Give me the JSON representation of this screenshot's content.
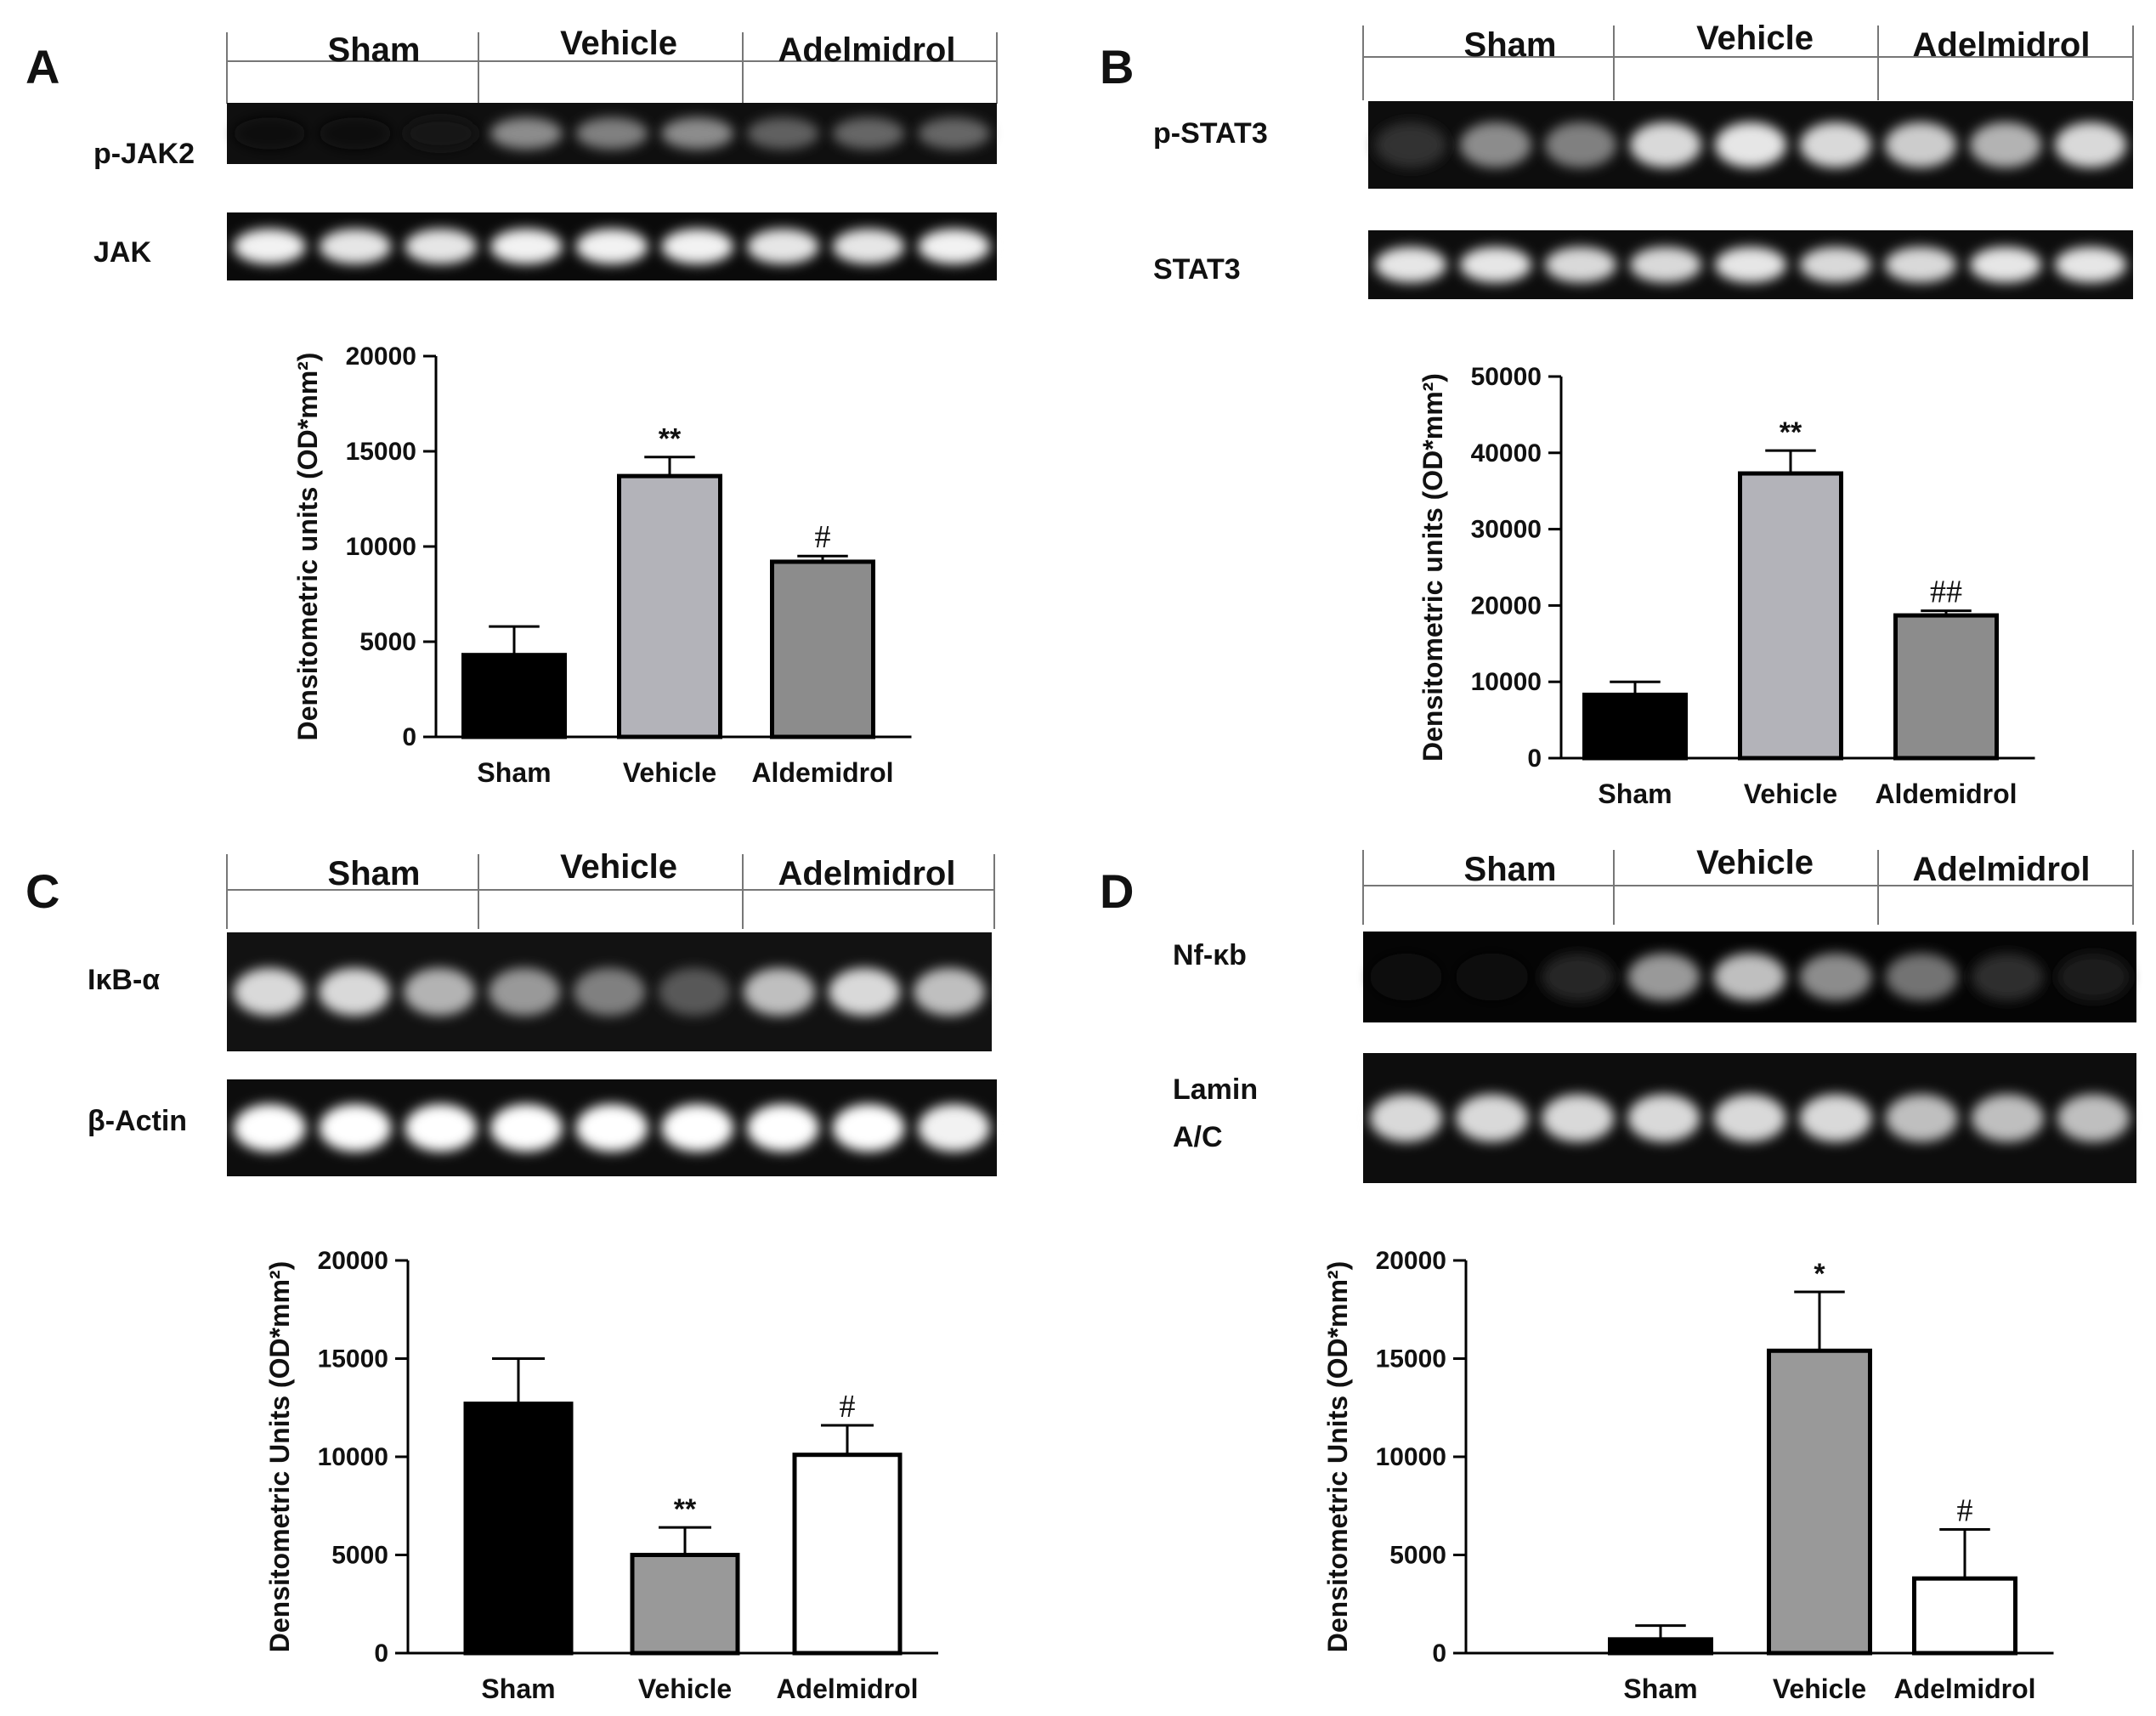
{
  "panels": [
    {
      "letter": "A",
      "groups": [
        "Sham",
        "Vehicle",
        "Adelmidrol"
      ],
      "blots": [
        {
          "label_lines": [
            "p-JAK2"
          ],
          "lanes": [
            0.06,
            0.06,
            0.07,
            0.55,
            0.5,
            0.55,
            0.38,
            0.4,
            0.4
          ],
          "bg": 0.06
        },
        {
          "label_lines": [
            "JAK"
          ],
          "lanes": [
            0.95,
            0.9,
            0.9,
            0.95,
            0.95,
            0.95,
            0.9,
            0.9,
            0.95
          ],
          "bg": 0.04
        }
      ],
      "chart_data": {
        "type": "bar",
        "categories": [
          "Sham",
          "Vehicle",
          "Aldemidrol"
        ],
        "values": [
          4300,
          13700,
          9200
        ],
        "errors": [
          1500,
          1000,
          300
        ],
        "significance": [
          "",
          "**",
          "#"
        ],
        "bar_colors": [
          "#000000",
          "#b3b3b9",
          "#8c8c8c"
        ],
        "ylabel": "Densitometric units (OD*mm²)",
        "ylim": [
          0,
          20000
        ],
        "yticks": [
          "0",
          "5000",
          "10000",
          "15000",
          "20000"
        ]
      }
    },
    {
      "letter": "B",
      "groups": [
        "Sham",
        "Vehicle",
        "Adelmidrol"
      ],
      "blots": [
        {
          "label_lines": [
            "p-STAT3"
          ],
          "lanes": [
            0.2,
            0.55,
            0.5,
            0.85,
            0.9,
            0.85,
            0.8,
            0.7,
            0.85
          ],
          "bg": 0.05
        },
        {
          "label_lines": [
            "STAT3"
          ],
          "lanes": [
            0.9,
            0.9,
            0.85,
            0.85,
            0.9,
            0.85,
            0.85,
            0.9,
            0.9
          ],
          "bg": 0.05
        }
      ],
      "chart_data": {
        "type": "bar",
        "categories": [
          "Sham",
          "Vehicle",
          "Aldemidrol"
        ],
        "values": [
          8300,
          37300,
          18700
        ],
        "errors": [
          1700,
          3000,
          600
        ],
        "significance": [
          "",
          "**",
          "##"
        ],
        "bar_colors": [
          "#000000",
          "#b3b3b9",
          "#8c8c8c"
        ],
        "ylabel": "Densitometric units (OD*mm²)",
        "ylim": [
          0,
          50000
        ],
        "yticks": [
          "0",
          "10000",
          "20000",
          "30000",
          "40000",
          "50000"
        ]
      }
    },
    {
      "letter": "C",
      "groups": [
        "Sham",
        "Vehicle",
        "Adelmidrol"
      ],
      "blots": [
        {
          "label_lines": [
            "IκB-α"
          ],
          "lanes": [
            0.85,
            0.85,
            0.7,
            0.6,
            0.5,
            0.35,
            0.75,
            0.85,
            0.75
          ],
          "bg": 0.07
        },
        {
          "label_lines": [
            "β-Actin"
          ],
          "lanes": [
            1.0,
            1.0,
            1.0,
            1.0,
            1.0,
            1.0,
            1.0,
            1.0,
            0.95
          ],
          "bg": 0.05
        }
      ],
      "chart_data": {
        "type": "bar",
        "categories": [
          "Sham",
          "Vehicle",
          "Adelmidrol"
        ],
        "values": [
          12700,
          5000,
          10100
        ],
        "errors": [
          2300,
          1400,
          1500
        ],
        "significance": [
          "",
          "**",
          "#"
        ],
        "bar_colors": [
          "#000000",
          "#999999",
          "#ffffff"
        ],
        "ylabel": "Densitometric Units (OD*mm²)",
        "ylim": [
          0,
          20000
        ],
        "yticks": [
          "0",
          "5000",
          "10000",
          "15000",
          "20000"
        ]
      }
    },
    {
      "letter": "D",
      "groups": [
        "Sham",
        "Vehicle",
        "Adelmidrol"
      ],
      "blots": [
        {
          "label_lines": [
            "Nf-κb"
          ],
          "lanes": [
            0.03,
            0.06,
            0.15,
            0.6,
            0.75,
            0.55,
            0.45,
            0.18,
            0.12
          ],
          "bg": 0.02
        },
        {
          "label_lines": [
            "Lamin",
            "A/C"
          ],
          "lanes": [
            0.85,
            0.85,
            0.85,
            0.85,
            0.85,
            0.85,
            0.75,
            0.75,
            0.75
          ],
          "bg": 0.05
        }
      ],
      "chart_data": {
        "type": "bar",
        "categories": [
          "Sham",
          "Vehicle",
          "Adelmidrol"
        ],
        "values": [
          700,
          15400,
          3800
        ],
        "errors": [
          700,
          3000,
          2500
        ],
        "significance": [
          "",
          "*",
          "#"
        ],
        "bar_colors": [
          "#000000",
          "#999999",
          "#ffffff"
        ],
        "ylabel": "Densitometric Units (OD*mm²)",
        "ylim": [
          0,
          20000
        ],
        "yticks": [
          "0",
          "5000",
          "10000",
          "15000",
          "20000"
        ]
      }
    }
  ]
}
